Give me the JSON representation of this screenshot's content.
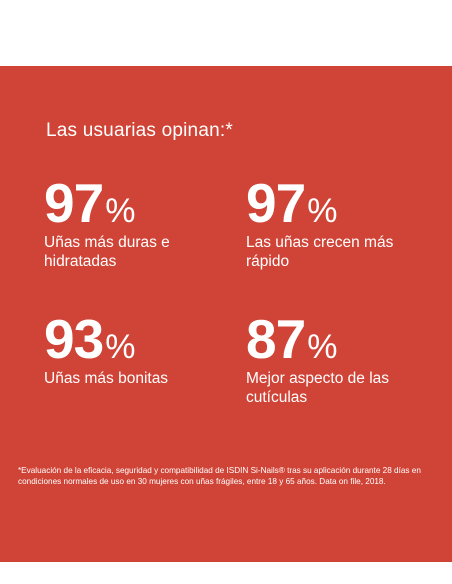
{
  "heading": "Las usuarias opinan:*",
  "stats": [
    {
      "value": "97",
      "unit": "%",
      "label": "Uñas más duras e hidratadas"
    },
    {
      "value": "97",
      "unit": "%",
      "label": "Las uñas crecen más rápido"
    },
    {
      "value": "93",
      "unit": "%",
      "label": "Uñas más bonitas"
    },
    {
      "value": "87",
      "unit": "%",
      "label": "Mejor aspecto de las cutículas"
    }
  ],
  "footnote": "*Evaluación de la eficacia, seguridad y compatibilidad de ISDIN Si-Nails® tras su aplicación durante 28 días en condiciones normales de uso en 30 mujeres con uñas frágiles, entre 18 y 65 años. Data on file, 2018.",
  "colors": {
    "panel": "#d04437",
    "text": "#ffffff"
  }
}
